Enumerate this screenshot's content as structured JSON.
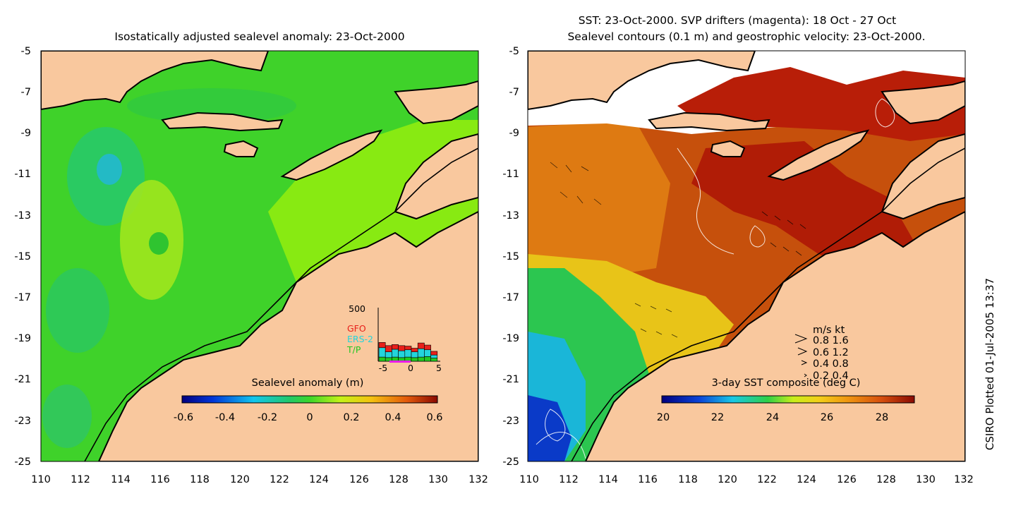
{
  "left_panel": {
    "title": "Isostatically adjusted sealevel anomaly: 23-Oct-2000",
    "y_ticks": [
      "-5",
      "-7",
      "-9",
      "-11",
      "-13",
      "-15",
      "-17",
      "-19",
      "-21",
      "-23",
      "-25"
    ],
    "x_ticks": [
      "110",
      "112",
      "114",
      "116",
      "118",
      "120",
      "122",
      "124",
      "126",
      "128",
      "130",
      "132"
    ],
    "colorbar": {
      "label": "Sealevel anomaly (m)",
      "ticks": [
        "-0.6",
        "-0.4",
        "-0.2",
        "0",
        "0.2",
        "0.4",
        "0.6"
      ]
    },
    "inset": {
      "y_label": "500",
      "x_ticks": [
        "-5",
        "0",
        "5"
      ],
      "legend": [
        {
          "name": "GFO",
          "color": "#e8201a"
        },
        {
          "name": "ERS-2",
          "color": "#23d4dc"
        },
        {
          "name": "T/P",
          "color": "#22c822"
        }
      ],
      "stacks": [
        [
          40,
          130,
          180
        ],
        [
          35,
          90,
          150
        ],
        [
          40,
          115,
          160
        ],
        [
          35,
          100,
          150
        ],
        [
          40,
          110,
          145
        ],
        [
          35,
          90,
          125
        ],
        [
          40,
          120,
          175
        ],
        [
          45,
          110,
          155
        ],
        [
          30,
          60,
          95
        ]
      ]
    }
  },
  "right_panel": {
    "title_line1": "SST: 23-Oct-2000. SVP drifters (magenta): 18 Oct - 27 Oct",
    "title_line2": "Sealevel contours (0.1 m) and geostrophic velocity: 23-Oct-2000.",
    "y_ticks": [
      "-5",
      "-7",
      "-9",
      "-11",
      "-13",
      "-15",
      "-17",
      "-19",
      "-21",
      "-23",
      "-25"
    ],
    "x_ticks": [
      "110",
      "112",
      "114",
      "116",
      "118",
      "120",
      "122",
      "124",
      "126",
      "128",
      "130",
      "132"
    ],
    "colorbar": {
      "label": "3-day SST composite (deg C)",
      "ticks": [
        "20",
        "22",
        "24",
        "26",
        "28"
      ]
    },
    "velocity_legend": {
      "header": "m/s  kt",
      "rows": [
        "0.8  1.6",
        "0.6  1.2",
        "0.4  0.8",
        "0.2  0.4"
      ]
    }
  },
  "credit": "CSIRO Plotted 01-Jul-2005 13:37",
  "colors": {
    "land": "#f9c89e",
    "sea_green": "#3fd22a",
    "sst_red": "#b81e08",
    "sst_orange": "#d46a10"
  }
}
